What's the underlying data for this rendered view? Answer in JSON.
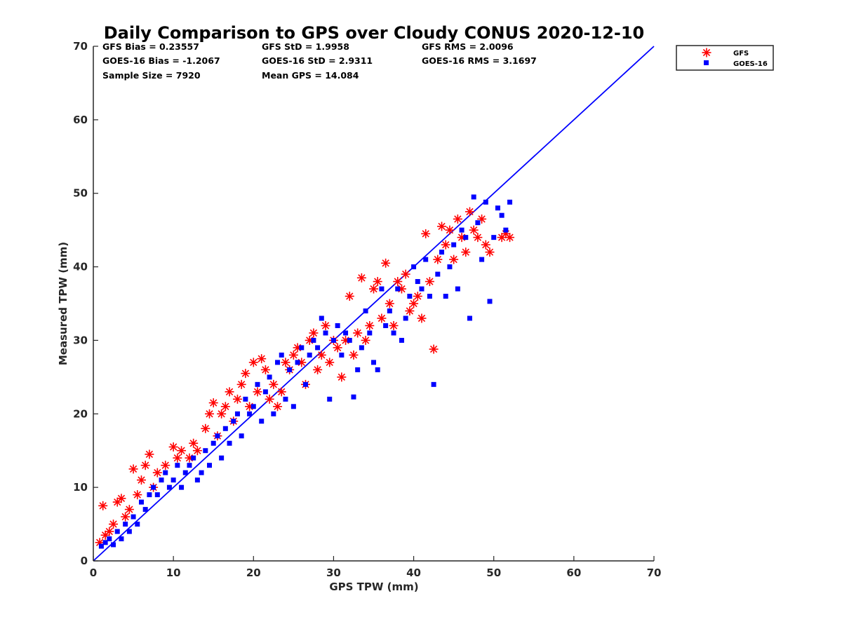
{
  "chart_data": {
    "type": "scatter",
    "title": "Daily Comparison to GPS over Cloudy CONUS 2020-12-10",
    "xlabel": "GPS TPW (mm)",
    "ylabel": "Measured TPW (mm)",
    "xlim": [
      0,
      70
    ],
    "ylim": [
      0,
      70
    ],
    "xticks": [
      0,
      10,
      20,
      30,
      40,
      50,
      60,
      70
    ],
    "yticks": [
      0,
      10,
      20,
      30,
      40,
      50,
      60,
      70
    ],
    "grid": false,
    "legend_position": "outside-top-right",
    "reference_line": {
      "description": "1:1 line",
      "x": [
        0,
        70
      ],
      "y": [
        0,
        70
      ],
      "color": "#0000ff"
    },
    "statistics": [
      [
        "GFS Bias = 0.23557",
        "GFS StD = 1.9958",
        "GFS RMS = 2.0096"
      ],
      [
        "GOES-16 Bias = -1.2067",
        "GOES-16 StD = 2.9311",
        "GOES-16 RMS = 3.1697"
      ],
      [
        "Sample Size = 7920",
        "Mean GPS = 14.084",
        ""
      ]
    ],
    "series": [
      {
        "name": "GFS",
        "marker": "asterisk",
        "color": "#ff0000",
        "points": [
          [
            0.8,
            2.5
          ],
          [
            1.2,
            7.5
          ],
          [
            1.5,
            3.5
          ],
          [
            2,
            4
          ],
          [
            2.5,
            5
          ],
          [
            3,
            8
          ],
          [
            3.5,
            8.5
          ],
          [
            4,
            6
          ],
          [
            4.5,
            7
          ],
          [
            5,
            12.5
          ],
          [
            5.5,
            9
          ],
          [
            6,
            11
          ],
          [
            6.5,
            13
          ],
          [
            7,
            14.5
          ],
          [
            7.5,
            10
          ],
          [
            8,
            12
          ],
          [
            9,
            13
          ],
          [
            10,
            15.5
          ],
          [
            10.5,
            14
          ],
          [
            11,
            15
          ],
          [
            12,
            14
          ],
          [
            12.5,
            16
          ],
          [
            13,
            15
          ],
          [
            14,
            18
          ],
          [
            14.5,
            20
          ],
          [
            15,
            21.5
          ],
          [
            15.5,
            17
          ],
          [
            16,
            20
          ],
          [
            16.5,
            21
          ],
          [
            17,
            23
          ],
          [
            17.5,
            19
          ],
          [
            18,
            22
          ],
          [
            18.5,
            24
          ],
          [
            19,
            25.5
          ],
          [
            19.5,
            21
          ],
          [
            20,
            27
          ],
          [
            20.5,
            23
          ],
          [
            21,
            27.5
          ],
          [
            21.5,
            26
          ],
          [
            22,
            22
          ],
          [
            22.5,
            24
          ],
          [
            23,
            21
          ],
          [
            23.5,
            23
          ],
          [
            24,
            27
          ],
          [
            24.5,
            26
          ],
          [
            25,
            28
          ],
          [
            25.5,
            29
          ],
          [
            26,
            27
          ],
          [
            26.5,
            24
          ],
          [
            27,
            30
          ],
          [
            27.5,
            31
          ],
          [
            28,
            26
          ],
          [
            28.5,
            28
          ],
          [
            29,
            32
          ],
          [
            29.5,
            27
          ],
          [
            30,
            30
          ],
          [
            30.5,
            29
          ],
          [
            31,
            25
          ],
          [
            31.5,
            30
          ],
          [
            32,
            36
          ],
          [
            32.5,
            28
          ],
          [
            33,
            31
          ],
          [
            33.5,
            38.5
          ],
          [
            34,
            30
          ],
          [
            34.5,
            32
          ],
          [
            35,
            37
          ],
          [
            35.5,
            38
          ],
          [
            36,
            33
          ],
          [
            36.5,
            40.5
          ],
          [
            37,
            35
          ],
          [
            37.5,
            32
          ],
          [
            38,
            38
          ],
          [
            38.5,
            37
          ],
          [
            39,
            39
          ],
          [
            39.5,
            34
          ],
          [
            40,
            35
          ],
          [
            40.5,
            36
          ],
          [
            41,
            33
          ],
          [
            41.5,
            44.5
          ],
          [
            42,
            38
          ],
          [
            42.5,
            28.8
          ],
          [
            43,
            41
          ],
          [
            43.5,
            45.5
          ],
          [
            44,
            43
          ],
          [
            44.5,
            45
          ],
          [
            45,
            41
          ],
          [
            45.5,
            46.5
          ],
          [
            46,
            44
          ],
          [
            46.5,
            42
          ],
          [
            47,
            47.5
          ],
          [
            47.5,
            45
          ],
          [
            48,
            44
          ],
          [
            48.5,
            46.5
          ],
          [
            49,
            43
          ],
          [
            49.5,
            42
          ],
          [
            51,
            44
          ],
          [
            51.5,
            44.5
          ],
          [
            52,
            44
          ]
        ]
      },
      {
        "name": "GOES-16",
        "marker": "square",
        "color": "#0000ff",
        "points": [
          [
            1,
            2
          ],
          [
            1.5,
            2.5
          ],
          [
            2,
            3
          ],
          [
            2.5,
            2.2
          ],
          [
            3,
            4
          ],
          [
            3.5,
            3
          ],
          [
            4,
            5
          ],
          [
            4.5,
            4
          ],
          [
            5,
            6
          ],
          [
            5.5,
            5
          ],
          [
            6,
            8
          ],
          [
            6.5,
            7
          ],
          [
            7,
            9
          ],
          [
            7.5,
            10
          ],
          [
            8,
            9
          ],
          [
            8.5,
            11
          ],
          [
            9,
            12
          ],
          [
            9.5,
            10
          ],
          [
            10,
            11
          ],
          [
            10.5,
            13
          ],
          [
            11,
            10
          ],
          [
            11.5,
            12
          ],
          [
            12,
            13
          ],
          [
            12.5,
            14
          ],
          [
            13,
            11
          ],
          [
            13.5,
            12
          ],
          [
            14,
            15
          ],
          [
            14.5,
            13
          ],
          [
            15,
            16
          ],
          [
            15.5,
            17
          ],
          [
            16,
            14
          ],
          [
            16.5,
            18
          ],
          [
            17,
            16
          ],
          [
            17.5,
            19
          ],
          [
            18,
            20
          ],
          [
            18.5,
            17
          ],
          [
            19,
            22
          ],
          [
            19.5,
            20
          ],
          [
            20,
            21
          ],
          [
            20.5,
            24
          ],
          [
            21,
            19
          ],
          [
            21.5,
            23
          ],
          [
            22,
            25
          ],
          [
            22.5,
            20
          ],
          [
            23,
            27
          ],
          [
            23.5,
            28
          ],
          [
            24,
            22
          ],
          [
            24.5,
            26
          ],
          [
            25,
            21
          ],
          [
            25.5,
            27
          ],
          [
            26,
            29
          ],
          [
            26.5,
            24
          ],
          [
            27,
            28
          ],
          [
            27.5,
            30
          ],
          [
            28,
            29
          ],
          [
            28.5,
            33
          ],
          [
            29,
            31
          ],
          [
            29.5,
            22
          ],
          [
            30,
            30
          ],
          [
            30.5,
            32
          ],
          [
            31,
            28
          ],
          [
            31.5,
            31
          ],
          [
            32,
            30
          ],
          [
            32.5,
            22.3
          ],
          [
            33,
            26
          ],
          [
            33.5,
            29
          ],
          [
            34,
            34
          ],
          [
            34.5,
            31
          ],
          [
            35,
            27
          ],
          [
            35.5,
            26
          ],
          [
            36,
            37
          ],
          [
            36.5,
            32
          ],
          [
            37,
            34
          ],
          [
            37.5,
            31
          ],
          [
            38,
            37
          ],
          [
            38.5,
            30
          ],
          [
            39,
            33
          ],
          [
            39.5,
            36
          ],
          [
            40,
            40
          ],
          [
            40.5,
            38
          ],
          [
            41,
            37
          ],
          [
            41.5,
            41
          ],
          [
            42,
            36
          ],
          [
            42.5,
            24
          ],
          [
            43,
            39
          ],
          [
            43.5,
            42
          ],
          [
            44,
            36
          ],
          [
            44.5,
            40
          ],
          [
            45,
            43
          ],
          [
            45.5,
            37
          ],
          [
            46,
            45
          ],
          [
            46.5,
            44
          ],
          [
            47,
            33
          ],
          [
            47.5,
            49.5
          ],
          [
            48,
            46
          ],
          [
            48.5,
            41
          ],
          [
            49,
            48.8
          ],
          [
            49.5,
            35.3
          ],
          [
            50,
            44
          ],
          [
            50.5,
            48
          ],
          [
            51,
            47
          ],
          [
            51.5,
            45
          ],
          [
            52,
            48.8
          ]
        ]
      }
    ]
  }
}
